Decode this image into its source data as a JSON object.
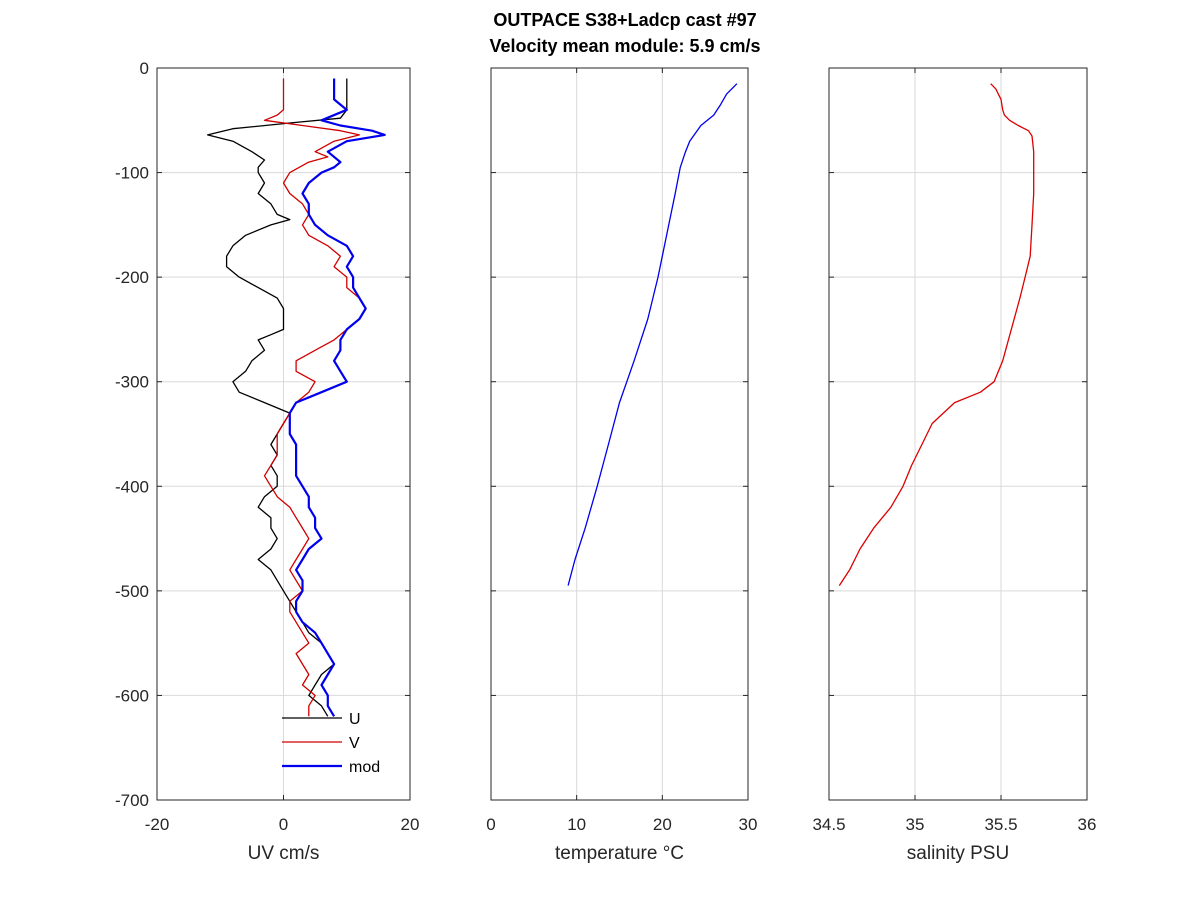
{
  "title_line1": "OUTPACE S38+Ladcp cast #97",
  "title_line2": "Velocity mean module:  5.9 cm/s",
  "chart_data": [
    {
      "type": "line",
      "xlabel": "UV cm/s",
      "ylabel": "",
      "xlim": [
        -20,
        20
      ],
      "ylim": [
        -700,
        0
      ],
      "xticks": [
        -20,
        0,
        20
      ],
      "yticks": [
        0,
        -100,
        -200,
        -300,
        -400,
        -500,
        -600,
        -700
      ],
      "grid": true,
      "legend_location": "bottom-center",
      "series": [
        {
          "name": "U",
          "color": "#000000",
          "y": [
            -10,
            -20,
            -30,
            -40,
            -48,
            -52,
            -58,
            -64,
            -70,
            -80,
            -88,
            -95,
            -100,
            -110,
            -120,
            -130,
            -140,
            -145,
            -150,
            -160,
            -170,
            -180,
            -190,
            -200,
            -210,
            -220,
            -230,
            -240,
            -250,
            -255,
            -260,
            -270,
            -280,
            -290,
            -300,
            -310,
            -320,
            -330,
            -340,
            -350,
            -360,
            -370,
            -380,
            -390,
            -400,
            -410,
            -420,
            -430,
            -440,
            -450,
            -460,
            -470,
            -480,
            -490,
            -500,
            -510,
            -520,
            -530,
            -540,
            -550,
            -560,
            -570,
            -580,
            -590,
            -600,
            -610,
            -620
          ],
          "values": [
            10,
            10,
            10,
            10,
            9,
            2,
            -8,
            -12,
            -8,
            -5,
            -3,
            -4,
            -4,
            -3,
            -4,
            -2,
            -1,
            1,
            -2,
            -6,
            -8,
            -9,
            -9,
            -7,
            -4,
            -1,
            0,
            0,
            0,
            -2,
            -4,
            -3,
            -5,
            -6,
            -8,
            -7,
            -3,
            1,
            0,
            -1,
            -2,
            -1,
            -2,
            -1,
            -1,
            -3,
            -4,
            -2,
            -2,
            -1,
            -2,
            -4,
            -2,
            -1,
            0,
            1,
            2,
            3,
            4,
            6,
            7,
            8,
            6,
            5,
            4,
            6,
            7
          ]
        },
        {
          "name": "V",
          "color": "#d00000",
          "y": [
            -10,
            -20,
            -30,
            -40,
            -45,
            -50,
            -55,
            -60,
            -64,
            -70,
            -80,
            -85,
            -90,
            -100,
            -110,
            -120,
            -130,
            -140,
            -150,
            -160,
            -170,
            -180,
            -190,
            -200,
            -210,
            -220,
            -230,
            -240,
            -250,
            -260,
            -270,
            -280,
            -290,
            -300,
            -310,
            -320,
            -330,
            -340,
            -350,
            -360,
            -370,
            -380,
            -390,
            -400,
            -410,
            -420,
            -430,
            -440,
            -450,
            -460,
            -470,
            -480,
            -490,
            -500,
            -510,
            -520,
            -530,
            -540,
            -550,
            -560,
            -570,
            -580,
            -590,
            -600,
            -610,
            -620
          ],
          "values": [
            0,
            0,
            0,
            0,
            -1,
            -3,
            3,
            9,
            12,
            8,
            5,
            7,
            4,
            1,
            0,
            1,
            3,
            4,
            3,
            4,
            7,
            9,
            8,
            10,
            10,
            12,
            13,
            12,
            10,
            8,
            5,
            2,
            2,
            5,
            4,
            2,
            1,
            0,
            -1,
            -1,
            -1,
            -2,
            -3,
            -2,
            -1,
            1,
            2,
            3,
            4,
            3,
            2,
            1,
            2,
            3,
            1,
            1,
            2,
            3,
            4,
            2,
            3,
            4,
            3,
            5,
            4,
            4
          ]
        },
        {
          "name": "mod",
          "color": "#0000ee",
          "y": [
            -10,
            -20,
            -30,
            -35,
            -40,
            -50,
            -55,
            -60,
            -64,
            -70,
            -80,
            -90,
            -95,
            -100,
            -110,
            -120,
            -130,
            -140,
            -150,
            -160,
            -170,
            -180,
            -190,
            -200,
            -210,
            -220,
            -230,
            -240,
            -250,
            -260,
            -270,
            -280,
            -290,
            -300,
            -310,
            -320,
            -330,
            -340,
            -350,
            -360,
            -370,
            -380,
            -390,
            -400,
            -410,
            -420,
            -430,
            -440,
            -450,
            -460,
            -470,
            -480,
            -490,
            -500,
            -510,
            -520,
            -530,
            -540,
            -550,
            -560,
            -570,
            -580,
            -590,
            -600,
            -610,
            -620
          ],
          "values": [
            8,
            8,
            8,
            9,
            10,
            6,
            9,
            14,
            16,
            10,
            7,
            9,
            8,
            6,
            4,
            3,
            4,
            4,
            5,
            7,
            10,
            11,
            10,
            11,
            11,
            12,
            13,
            12,
            10,
            9,
            9,
            8,
            9,
            10,
            6,
            2,
            1,
            1,
            1,
            2,
            2,
            2,
            2,
            3,
            4,
            4,
            5,
            5,
            6,
            4,
            3,
            2,
            3,
            3,
            2,
            2,
            3,
            5,
            6,
            7,
            8,
            7,
            6,
            7,
            7,
            8
          ]
        }
      ]
    },
    {
      "type": "line",
      "xlabel": "temperature °C",
      "xlim": [
        0,
        30
      ],
      "ylim": [
        -700,
        0
      ],
      "xticks": [
        0,
        10,
        20,
        30
      ],
      "grid": true,
      "series": [
        {
          "color": "#0000ee",
          "y": [
            -15,
            -25,
            -35,
            -45,
            -55,
            -70,
            -80,
            -95,
            -120,
            -160,
            -200,
            -240,
            -280,
            -320,
            -360,
            -400,
            -440,
            -470,
            -495
          ],
          "values": [
            28.7,
            27.5,
            26.8,
            26.0,
            24.5,
            23.2,
            22.7,
            22.1,
            21.5,
            20.5,
            19.5,
            18.3,
            16.7,
            15.0,
            13.7,
            12.4,
            11.0,
            9.8,
            9.0
          ]
        }
      ]
    },
    {
      "type": "line",
      "xlabel": "salinity PSU",
      "xlim": [
        34.5,
        36
      ],
      "ylim": [
        -700,
        0
      ],
      "xticks": [
        34.5,
        35,
        35.5,
        36
      ],
      "tick_labels": [
        "34.5",
        "35",
        "35.5",
        "36"
      ],
      "grid": true,
      "series": [
        {
          "color": "#dd0000",
          "y": [
            -15,
            -20,
            -30,
            -40,
            -45,
            -50,
            -55,
            -60,
            -65,
            -80,
            -100,
            -120,
            -150,
            -180,
            -200,
            -220,
            -250,
            -280,
            -300,
            -310,
            -320,
            -340,
            -360,
            -380,
            -400,
            -420,
            -440,
            -460,
            -480,
            -495
          ],
          "values": [
            35.44,
            35.47,
            35.5,
            35.51,
            35.52,
            35.55,
            35.6,
            35.66,
            35.68,
            35.69,
            35.69,
            35.69,
            35.68,
            35.67,
            35.64,
            35.61,
            35.56,
            35.51,
            35.46,
            35.38,
            35.23,
            35.1,
            35.04,
            34.98,
            34.93,
            34.86,
            34.76,
            34.68,
            34.62,
            34.56
          ]
        }
      ]
    }
  ]
}
